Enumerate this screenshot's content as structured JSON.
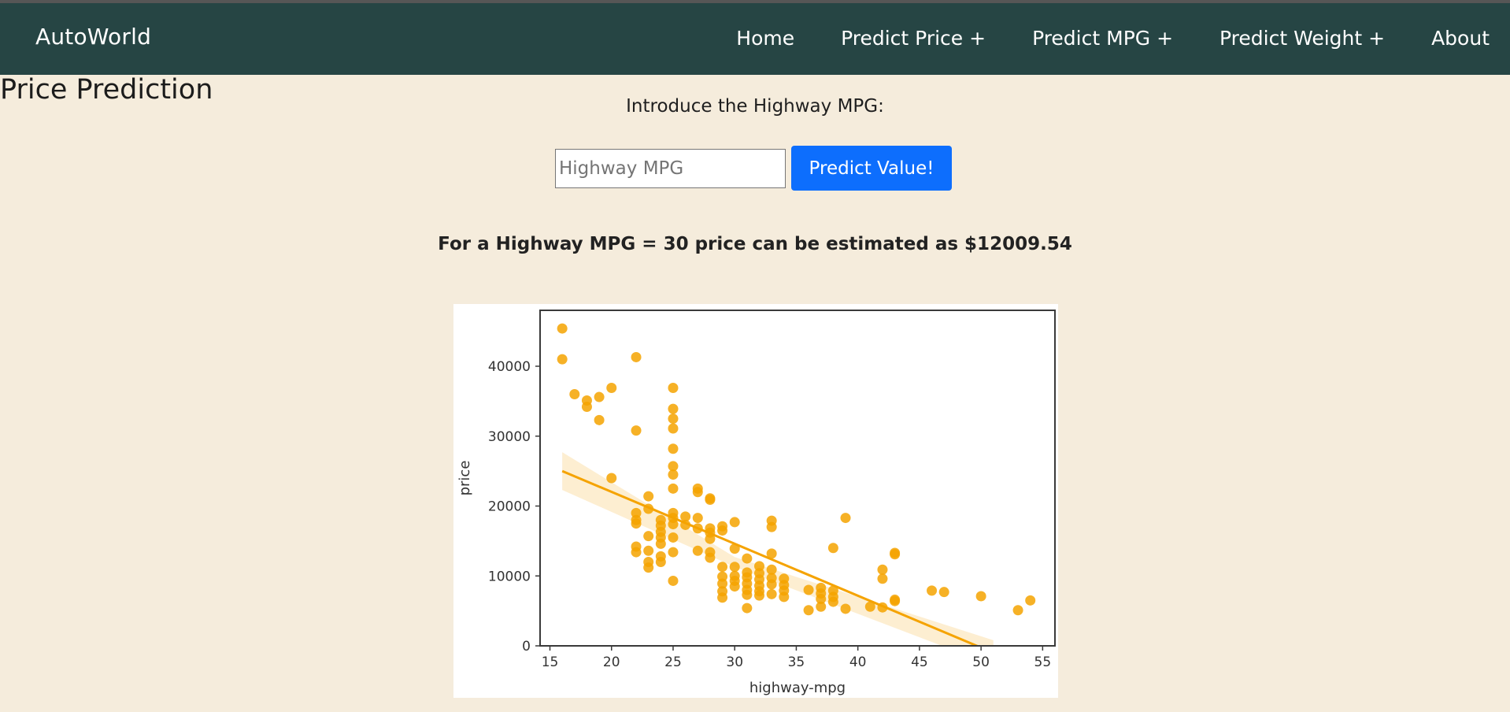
{
  "navbar": {
    "brand": "AutoWorld",
    "items": [
      {
        "label": "Home"
      },
      {
        "label": "Predict Price +"
      },
      {
        "label": "Predict MPG +"
      },
      {
        "label": "Predict Weight +"
      },
      {
        "label": "About"
      }
    ]
  },
  "page": {
    "title": "Price Prediction",
    "intro": "Introduce the Highway MPG:",
    "input_value": "",
    "input_placeholder": "Highway MPG",
    "button_label": "Predict Value!",
    "result": "For a Highway MPG = 30 price can be estimated as $12009.54"
  },
  "colors": {
    "navbar_bg": "#264544",
    "page_bg": "#f5ecdc",
    "button_bg": "#0d6efd",
    "point_color": "#f5a300",
    "fit_color": "#f5a300"
  },
  "chart_data": {
    "type": "scatter",
    "title": "",
    "xlabel": "highway-mpg",
    "ylabel": "price",
    "xlim": [
      14.2,
      56
    ],
    "ylim": [
      0,
      48000
    ],
    "xticks": [
      15,
      20,
      25,
      30,
      35,
      40,
      45,
      50,
      55
    ],
    "yticks": [
      0,
      10000,
      20000,
      30000,
      40000
    ],
    "grid": false,
    "regression_line": {
      "x": [
        16,
        51
      ],
      "y": [
        25000,
        -1000
      ]
    },
    "confidence_band": {
      "x": [
        16,
        30,
        51
      ],
      "upper": [
        27700,
        12700,
        800
      ],
      "lower": [
        22300,
        11300,
        -2800
      ]
    },
    "points": [
      {
        "x": 16,
        "y": 45400
      },
      {
        "x": 16,
        "y": 41000
      },
      {
        "x": 17,
        "y": 36000
      },
      {
        "x": 18,
        "y": 35100
      },
      {
        "x": 18,
        "y": 34200
      },
      {
        "x": 19,
        "y": 35600
      },
      {
        "x": 19,
        "y": 32300
      },
      {
        "x": 20,
        "y": 36900
      },
      {
        "x": 20,
        "y": 24000
      },
      {
        "x": 22,
        "y": 41300
      },
      {
        "x": 22,
        "y": 30800
      },
      {
        "x": 22,
        "y": 19000
      },
      {
        "x": 22,
        "y": 18000
      },
      {
        "x": 22,
        "y": 17500
      },
      {
        "x": 22,
        "y": 14200
      },
      {
        "x": 22,
        "y": 13400
      },
      {
        "x": 23,
        "y": 21400
      },
      {
        "x": 23,
        "y": 19600
      },
      {
        "x": 23,
        "y": 15700
      },
      {
        "x": 23,
        "y": 13600
      },
      {
        "x": 23,
        "y": 12000
      },
      {
        "x": 23,
        "y": 11200
      },
      {
        "x": 24,
        "y": 18000
      },
      {
        "x": 24,
        "y": 17200
      },
      {
        "x": 24,
        "y": 16300
      },
      {
        "x": 24,
        "y": 15500
      },
      {
        "x": 24,
        "y": 14600
      },
      {
        "x": 24,
        "y": 12800
      },
      {
        "x": 24,
        "y": 12000
      },
      {
        "x": 25,
        "y": 36900
      },
      {
        "x": 25,
        "y": 33900
      },
      {
        "x": 25,
        "y": 32500
      },
      {
        "x": 25,
        "y": 31100
      },
      {
        "x": 25,
        "y": 28200
      },
      {
        "x": 25,
        "y": 25700
      },
      {
        "x": 25,
        "y": 24500
      },
      {
        "x": 25,
        "y": 22500
      },
      {
        "x": 25,
        "y": 19000
      },
      {
        "x": 25,
        "y": 18300
      },
      {
        "x": 25,
        "y": 17400
      },
      {
        "x": 25,
        "y": 15500
      },
      {
        "x": 25,
        "y": 13400
      },
      {
        "x": 25,
        "y": 9300
      },
      {
        "x": 26,
        "y": 18500
      },
      {
        "x": 26,
        "y": 17300
      },
      {
        "x": 27,
        "y": 22500
      },
      {
        "x": 27,
        "y": 22000
      },
      {
        "x": 27,
        "y": 18300
      },
      {
        "x": 27,
        "y": 16800
      },
      {
        "x": 27,
        "y": 13600
      },
      {
        "x": 28,
        "y": 21100
      },
      {
        "x": 28,
        "y": 20900
      },
      {
        "x": 28,
        "y": 16800
      },
      {
        "x": 28,
        "y": 16200
      },
      {
        "x": 28,
        "y": 15300
      },
      {
        "x": 28,
        "y": 13400
      },
      {
        "x": 28,
        "y": 12600
      },
      {
        "x": 29,
        "y": 17100
      },
      {
        "x": 29,
        "y": 16500
      },
      {
        "x": 30,
        "y": 17700
      },
      {
        "x": 30,
        "y": 13900
      },
      {
        "x": 30,
        "y": 11300
      },
      {
        "x": 30,
        "y": 10000
      },
      {
        "x": 30,
        "y": 9300
      },
      {
        "x": 30,
        "y": 8500
      },
      {
        "x": 29,
        "y": 11300
      },
      {
        "x": 29,
        "y": 9900
      },
      {
        "x": 29,
        "y": 8900
      },
      {
        "x": 29,
        "y": 7800
      },
      {
        "x": 29,
        "y": 6900
      },
      {
        "x": 31,
        "y": 12500
      },
      {
        "x": 31,
        "y": 10500
      },
      {
        "x": 31,
        "y": 9800
      },
      {
        "x": 31,
        "y": 8900
      },
      {
        "x": 31,
        "y": 8000
      },
      {
        "x": 31,
        "y": 7300
      },
      {
        "x": 31,
        "y": 5400
      },
      {
        "x": 32,
        "y": 11400
      },
      {
        "x": 32,
        "y": 10400
      },
      {
        "x": 32,
        "y": 9500
      },
      {
        "x": 32,
        "y": 8600
      },
      {
        "x": 32,
        "y": 7800
      },
      {
        "x": 32,
        "y": 7200
      },
      {
        "x": 33,
        "y": 17900
      },
      {
        "x": 33,
        "y": 17000
      },
      {
        "x": 33,
        "y": 13200
      },
      {
        "x": 33,
        "y": 10900
      },
      {
        "x": 33,
        "y": 9700
      },
      {
        "x": 33,
        "y": 8800
      },
      {
        "x": 33,
        "y": 7400
      },
      {
        "x": 34,
        "y": 9600
      },
      {
        "x": 34,
        "y": 8700
      },
      {
        "x": 34,
        "y": 7900
      },
      {
        "x": 34,
        "y": 7000
      },
      {
        "x": 36,
        "y": 8000
      },
      {
        "x": 36,
        "y": 5100
      },
      {
        "x": 37,
        "y": 8300
      },
      {
        "x": 37,
        "y": 7500
      },
      {
        "x": 37,
        "y": 6700
      },
      {
        "x": 37,
        "y": 5600
      },
      {
        "x": 38,
        "y": 14000
      },
      {
        "x": 38,
        "y": 7900
      },
      {
        "x": 38,
        "y": 7000
      },
      {
        "x": 38,
        "y": 6300
      },
      {
        "x": 39,
        "y": 18300
      },
      {
        "x": 39,
        "y": 5300
      },
      {
        "x": 41,
        "y": 5600
      },
      {
        "x": 42,
        "y": 10900
      },
      {
        "x": 42,
        "y": 9600
      },
      {
        "x": 42,
        "y": 5500
      },
      {
        "x": 43,
        "y": 13300
      },
      {
        "x": 43,
        "y": 13100
      },
      {
        "x": 43,
        "y": 6600
      },
      {
        "x": 43,
        "y": 6400
      },
      {
        "x": 46,
        "y": 7900
      },
      {
        "x": 47,
        "y": 7700
      },
      {
        "x": 50,
        "y": 7100
      },
      {
        "x": 53,
        "y": 5100
      },
      {
        "x": 54,
        "y": 6500
      }
    ]
  }
}
